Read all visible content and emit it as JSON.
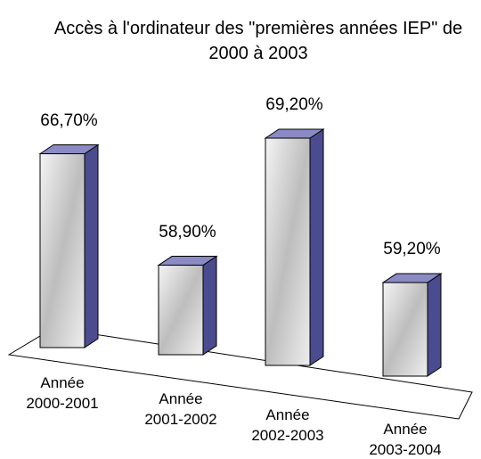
{
  "chart_data": {
    "type": "bar3d",
    "title": "Accès à l'ordinateur des \"premières années IEP\" de 2000 à 2003",
    "categories": [
      "Année 2000-2001",
      "Année 2001-2002",
      "Année 2002-2003",
      "Année 2003-2004"
    ],
    "values": [
      66.7,
      58.9,
      69.2,
      59.2
    ],
    "value_labels": [
      "66,70%",
      "58,90%",
      "69,20%",
      "59,20%"
    ],
    "color": "#4b4b8f"
  }
}
